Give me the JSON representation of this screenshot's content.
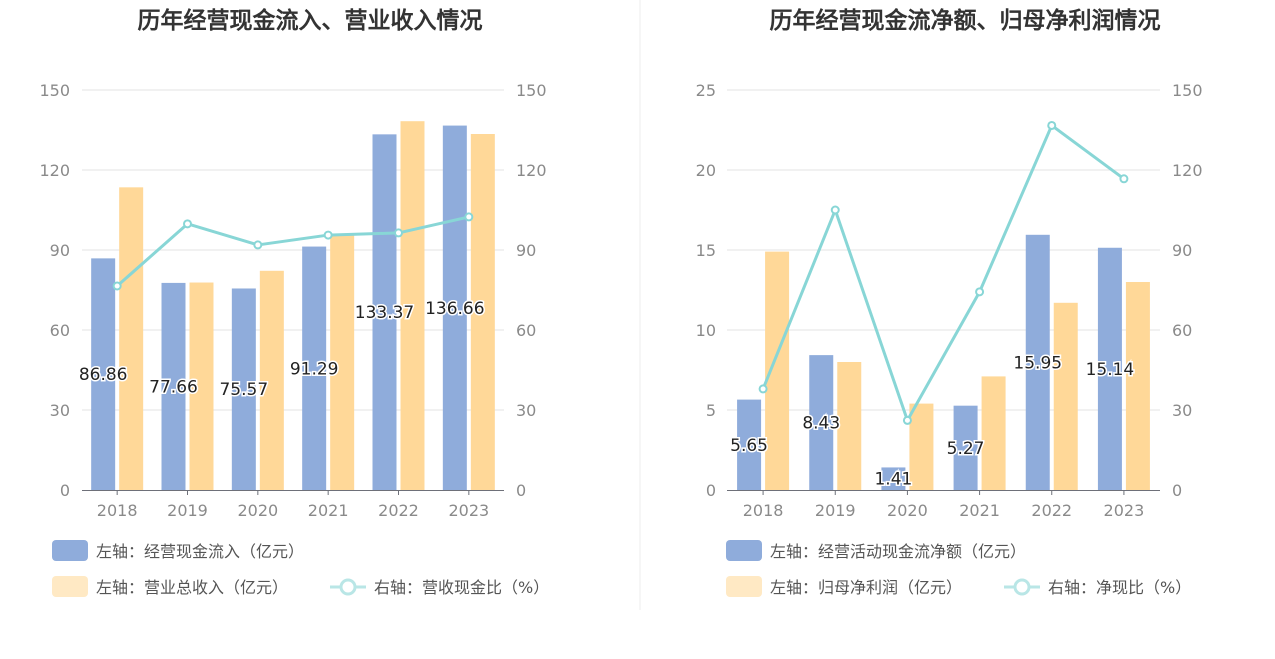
{
  "chart_data": [
    {
      "type": "bar",
      "title": "历年经营现金流入、营业收入情况",
      "categories": [
        "2018",
        "2019",
        "2020",
        "2021",
        "2022",
        "2023"
      ],
      "left_axis": {
        "ylim": [
          0,
          150
        ],
        "ticks": [
          "0",
          "30",
          "60",
          "90",
          "120",
          "150"
        ]
      },
      "right_axis": {
        "ylim": [
          0,
          150
        ],
        "ticks": [
          "0",
          "30",
          "60",
          "90",
          "120",
          "150"
        ]
      },
      "series": [
        {
          "name": "左轴：经营现金流入（亿元）",
          "type": "bar",
          "axis": "left",
          "color": "#8facdb",
          "values": [
            86.86,
            77.66,
            75.57,
            91.29,
            133.37,
            136.66
          ],
          "labels": [
            "86.86",
            "77.66",
            "75.57",
            "91.29",
            "133.37",
            "136.66"
          ]
        },
        {
          "name": "左轴：营业总收入（亿元）",
          "type": "bar",
          "axis": "left",
          "color": "#ffd898",
          "values": [
            113.5,
            77.8,
            82.2,
            95.5,
            138.3,
            133.5
          ]
        },
        {
          "name": "右轴：营收现金比（%）",
          "type": "line",
          "axis": "right",
          "color": "#88d6d6",
          "values": [
            76.5,
            99.8,
            91.9,
            95.6,
            96.4,
            102.4
          ]
        }
      ]
    },
    {
      "type": "bar",
      "title": "历年经营现金流净额、归母净利润情况",
      "categories": [
        "2018",
        "2019",
        "2020",
        "2021",
        "2022",
        "2023"
      ],
      "left_axis": {
        "ylim": [
          0,
          25
        ],
        "ticks": [
          "0",
          "5",
          "10",
          "15",
          "20",
          "25"
        ]
      },
      "right_axis": {
        "ylim": [
          0,
          150
        ],
        "ticks": [
          "0",
          "30",
          "60",
          "90",
          "120",
          "150"
        ]
      },
      "series": [
        {
          "name": "左轴：经营活动现金流净额（亿元）",
          "type": "bar",
          "axis": "left",
          "color": "#8facdb",
          "values": [
            5.65,
            8.43,
            1.41,
            5.27,
            15.95,
            15.14
          ],
          "labels": [
            "5.65",
            "8.43",
            "1.41",
            "5.27",
            "15.95",
            "15.14"
          ]
        },
        {
          "name": "左轴：归母净利润（亿元）",
          "type": "bar",
          "axis": "left",
          "color": "#ffd898",
          "values": [
            14.9,
            8.0,
            5.4,
            7.1,
            11.7,
            13.0
          ]
        },
        {
          "name": "右轴：净现比（%）",
          "type": "line",
          "axis": "right",
          "color": "#88d6d6",
          "values": [
            37.9,
            105.0,
            26.1,
            74.3,
            136.7,
            116.7
          ]
        }
      ]
    }
  ]
}
